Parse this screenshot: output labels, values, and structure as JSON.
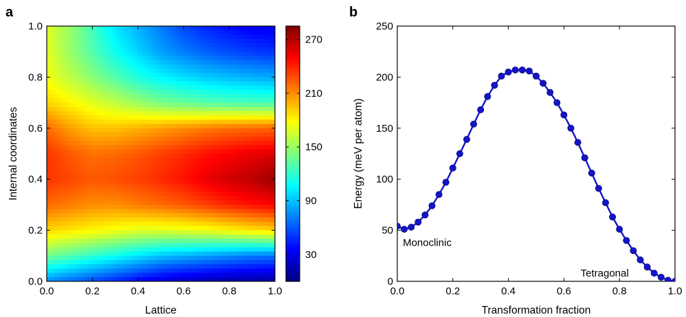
{
  "panels": {
    "a": {
      "letter": "a"
    },
    "b": {
      "letter": "b"
    }
  },
  "chart_data": [
    {
      "type": "heatmap",
      "panel": "a",
      "xlabel": "Lattice",
      "ylabel": "Internal coordinates",
      "xlim": [
        0,
        1
      ],
      "ylim": [
        0,
        1
      ],
      "x_ticks": [
        "0.0",
        "0.2",
        "0.4",
        "0.6",
        "0.8",
        "1.0"
      ],
      "y_ticks": [
        "0.0",
        "0.2",
        "0.4",
        "0.6",
        "0.8",
        "1.0"
      ],
      "colorbar": {
        "colormap": "jet",
        "range": [
          0,
          285
        ],
        "ticks": [
          "30",
          "90",
          "150",
          "210",
          "270"
        ],
        "tick_values": [
          30,
          90,
          150,
          210,
          270
        ]
      },
      "x": [
        0.0,
        0.1,
        0.2,
        0.3,
        0.4,
        0.5,
        0.6,
        0.7,
        0.8,
        0.9,
        1.0
      ],
      "y": [
        0.0,
        0.1,
        0.2,
        0.3,
        0.4,
        0.5,
        0.6,
        0.7,
        0.8,
        0.9,
        1.0
      ],
      "z": [
        [
          75,
          65,
          55,
          45,
          35,
          25,
          20,
          15,
          12,
          10,
          8
        ],
        [
          140,
          130,
          120,
          110,
          100,
          90,
          85,
          80,
          75,
          70,
          68
        ],
        [
          190,
          185,
          180,
          175,
          170,
          170,
          172,
          175,
          180,
          185,
          190
        ],
        [
          220,
          215,
          210,
          210,
          215,
          220,
          225,
          232,
          240,
          245,
          250
        ],
        [
          235,
          230,
          225,
          228,
          232,
          238,
          245,
          255,
          262,
          268,
          278
        ],
        [
          235,
          225,
          218,
          220,
          225,
          232,
          238,
          245,
          250,
          255,
          258
        ],
        [
          220,
          205,
          195,
          195,
          200,
          205,
          210,
          215,
          218,
          220,
          222
        ],
        [
          190,
          180,
          170,
          160,
          150,
          140,
          135,
          130,
          128,
          126,
          125
        ],
        [
          175,
          160,
          145,
          130,
          115,
          105,
          98,
          92,
          88,
          85,
          82
        ],
        [
          170,
          150,
          130,
          110,
          95,
          80,
          70,
          62,
          56,
          52,
          48
        ],
        [
          170,
          150,
          125,
          100,
          85,
          70,
          55,
          45,
          38,
          32,
          30
        ]
      ]
    },
    {
      "type": "line",
      "panel": "b",
      "xlabel": "Transformation fraction",
      "ylabel": "Energy (meV per atom)",
      "xlim": [
        0,
        1
      ],
      "ylim": [
        0,
        250
      ],
      "x_ticks": [
        "0.0",
        "0.2",
        "0.4",
        "0.6",
        "0.8",
        "1.0"
      ],
      "y_ticks": [
        "0",
        "50",
        "100",
        "150",
        "200",
        "250"
      ],
      "color": "#1414c8",
      "annotations": [
        {
          "text": "Monoclinic",
          "x": 0.02,
          "y": 38
        },
        {
          "text": "Tetragonal",
          "x": 0.66,
          "y": 8
        }
      ],
      "series": [
        {
          "x": [
            0.0,
            0.025,
            0.05,
            0.075,
            0.1,
            0.125,
            0.15,
            0.175,
            0.2,
            0.225,
            0.25,
            0.275,
            0.3,
            0.325,
            0.35,
            0.375,
            0.4,
            0.425,
            0.45,
            0.475,
            0.5,
            0.525,
            0.55,
            0.575,
            0.6,
            0.625,
            0.65,
            0.675,
            0.7,
            0.725,
            0.75,
            0.775,
            0.8,
            0.825,
            0.85,
            0.875,
            0.9,
            0.925,
            0.95,
            0.975,
            1.0
          ],
          "y": [
            54,
            51,
            53,
            58,
            65,
            74,
            85,
            97,
            111,
            125,
            139,
            154,
            168,
            181,
            192,
            201,
            205,
            207,
            207,
            206,
            201,
            194,
            185,
            175,
            163,
            150,
            136,
            121,
            106,
            91,
            77,
            63,
            51,
            40,
            30,
            21,
            14,
            8,
            4,
            1,
            0
          ]
        }
      ]
    }
  ]
}
